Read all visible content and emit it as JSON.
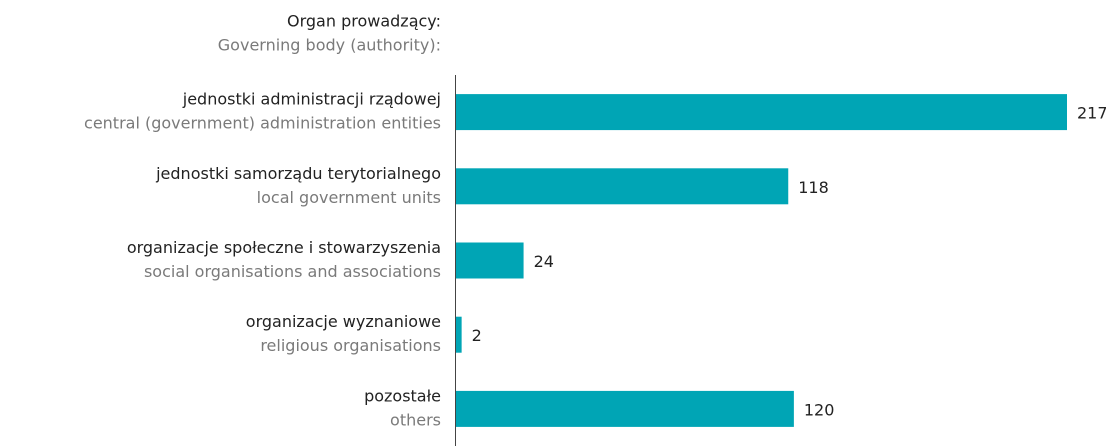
{
  "chart_data": {
    "type": "bar",
    "orientation": "horizontal",
    "header": [
      "Organ prowadzący:",
      "Governing body (authority):"
    ],
    "categories": [
      [
        "jednostki administracji rządowej",
        "central (government) administration entities"
      ],
      [
        "jednostki samorządu terytorialnego",
        "local government units"
      ],
      [
        "organizacje społeczne i stowarzyszenia",
        "social organisations and associations"
      ],
      [
        "organizacje wyznaniowe",
        "religious organisations"
      ],
      [
        "pozostałe",
        "others"
      ]
    ],
    "values": [
      217,
      118,
      24,
      2,
      120
    ],
    "color": "#00a5b5"
  }
}
